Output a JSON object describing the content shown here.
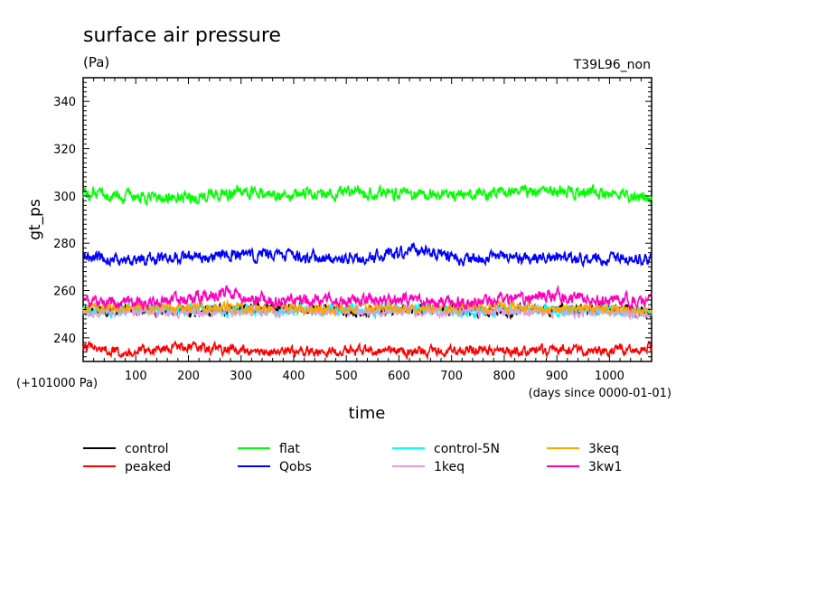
{
  "chart_data": {
    "type": "line",
    "title": "surface air pressure",
    "subtitle": "(Pa)",
    "tag": "T39L96_non",
    "ylabel": "gt_ps",
    "xlabel": "time",
    "x_unit_note": "(days since 0000-01-01)",
    "y_offset_note": "(+101000 Pa)",
    "xlim": [
      0,
      1080
    ],
    "ylim": [
      230,
      350
    ],
    "xticks": [
      100,
      200,
      300,
      400,
      500,
      600,
      700,
      800,
      900,
      1000
    ],
    "yticks": [
      240,
      260,
      280,
      300,
      320,
      340
    ],
    "grid": false,
    "legend_position": "bottom",
    "series": [
      {
        "name": "control",
        "color": "#000000",
        "mean": 252,
        "amp": 2.2,
        "x": [
          0,
          90,
          180,
          270,
          360,
          450,
          540,
          630,
          720,
          810,
          900,
          990,
          1080
        ],
        "y": [
          252,
          252,
          251,
          252,
          253,
          252,
          251,
          252,
          252,
          251,
          252,
          252,
          251
        ]
      },
      {
        "name": "peaked",
        "color": "#ff0000",
        "mean": 235,
        "amp": 2.0,
        "x": [
          0,
          90,
          180,
          270,
          360,
          450,
          540,
          630,
          720,
          810,
          900,
          990,
          1080
        ],
        "y": [
          236,
          234,
          236,
          235,
          234,
          234,
          235,
          234,
          235,
          234,
          235,
          235,
          236
        ]
      },
      {
        "name": "flat",
        "color": "#00ff00",
        "mean": 301,
        "amp": 2.5,
        "x": [
          0,
          90,
          180,
          270,
          360,
          450,
          540,
          630,
          720,
          810,
          900,
          990,
          1080
        ],
        "y": [
          301,
          299,
          299,
          301,
          301,
          301,
          301,
          301,
          300,
          302,
          302,
          301,
          299
        ]
      },
      {
        "name": "Qobs",
        "color": "#0000ff",
        "mean": 274,
        "amp": 2.5,
        "x": [
          0,
          90,
          180,
          270,
          360,
          450,
          540,
          630,
          720,
          810,
          900,
          990,
          1080
        ],
        "y": [
          274,
          273,
          274,
          275,
          275,
          274,
          274,
          277,
          273,
          274,
          274,
          273,
          273
        ]
      },
      {
        "name": "control-5N",
        "color": "#00ffff",
        "mean": 252,
        "amp": 2.2,
        "x": [
          0,
          90,
          180,
          270,
          360,
          450,
          540,
          630,
          720,
          810,
          900,
          990,
          1080
        ],
        "y": [
          251,
          252,
          252,
          252,
          251,
          252,
          252,
          252,
          251,
          252,
          252,
          251,
          251
        ]
      },
      {
        "name": "1keq",
        "color": "#dda0dd",
        "mean": 251,
        "amp": 2.0,
        "x": [
          0,
          90,
          180,
          270,
          360,
          450,
          540,
          630,
          720,
          810,
          900,
          990,
          1080
        ],
        "y": [
          251,
          251,
          251,
          251,
          251,
          251,
          251,
          251,
          251,
          251,
          251,
          251,
          250
        ]
      },
      {
        "name": "3keq",
        "color": "#ffa500",
        "mean": 253,
        "amp": 2.0,
        "x": [
          0,
          90,
          180,
          270,
          360,
          450,
          540,
          630,
          720,
          810,
          900,
          990,
          1080
        ],
        "y": [
          252,
          253,
          253,
          253,
          253,
          252,
          253,
          252,
          253,
          253,
          252,
          253,
          251
        ]
      },
      {
        "name": "3kw1",
        "color": "#ff00bf",
        "mean": 256,
        "amp": 2.5,
        "x": [
          0,
          90,
          180,
          270,
          360,
          450,
          540,
          630,
          720,
          810,
          900,
          990,
          1080
        ],
        "y": [
          255,
          255,
          256,
          259,
          256,
          256,
          256,
          256,
          255,
          256,
          258,
          256,
          256
        ]
      }
    ]
  }
}
